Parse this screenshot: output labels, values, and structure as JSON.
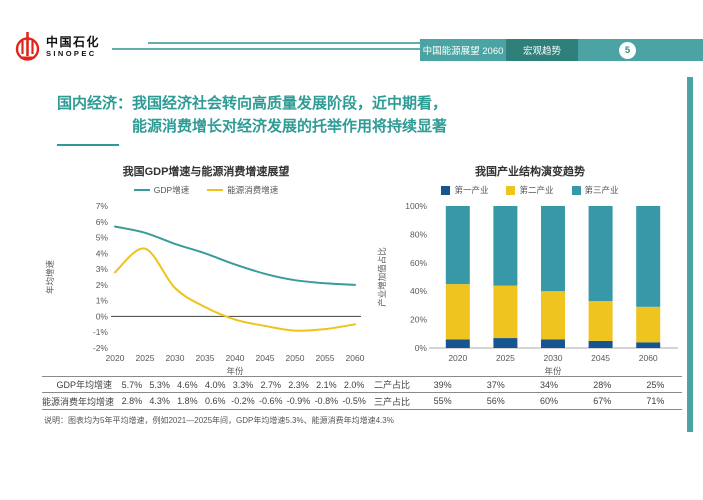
{
  "header": {
    "logo_cn": "中国石化",
    "logo_en": "SINOPEC",
    "banner_title": "中国能源展望 2060",
    "banner_section": "宏观趋势",
    "page_number": "5"
  },
  "title": {
    "prefix": "国内经济：",
    "line1": "我国经济社会转向高质量发展阶段，近中期看，",
    "line2": "能源消费增长对经济发展的托举作用将持续显著"
  },
  "chart_data": [
    {
      "type": "line",
      "title": "我国GDP增速与能源消费增速展望",
      "x": [
        2020,
        2025,
        2030,
        2035,
        2040,
        2045,
        2050,
        2055,
        2060
      ],
      "series": [
        {
          "name": "GDP增速",
          "color": "#3a9b9b",
          "values": [
            5.7,
            5.3,
            4.6,
            4.0,
            3.3,
            2.7,
            2.3,
            2.1,
            2.0
          ]
        },
        {
          "name": "能源消费增速",
          "color": "#efc31d",
          "values": [
            2.8,
            4.3,
            1.8,
            0.6,
            -0.2,
            -0.6,
            -0.9,
            -0.8,
            -0.5
          ]
        }
      ],
      "xlabel": "年份",
      "ylabel": "年均增速",
      "ylim": [
        -2,
        7
      ],
      "ytick_step": 1,
      "ytick_suffix": "%",
      "grid": false,
      "legend_position": "top"
    },
    {
      "type": "bar",
      "title": "我国产业结构演变趋势",
      "categories": [
        2020,
        2025,
        2030,
        2045,
        2060
      ],
      "series": [
        {
          "name": "第一产业",
          "color": "#16558f",
          "values": [
            6,
            7,
            6,
            5,
            4
          ]
        },
        {
          "name": "第二产业",
          "color": "#f0c41e",
          "values": [
            39,
            37,
            34,
            28,
            25
          ]
        },
        {
          "name": "第三产业",
          "color": "#3898a8",
          "values": [
            55,
            56,
            60,
            67,
            71
          ]
        }
      ],
      "stacked": true,
      "xlabel": "年份",
      "ylabel": "产业增加值占比",
      "ylim": [
        0,
        100
      ],
      "ytick_step": 20,
      "ytick_suffix": "%",
      "grid": false,
      "legend_position": "top"
    }
  ],
  "left_table": {
    "rows": [
      {
        "label": "GDP年均增速",
        "values": [
          "5.7%",
          "5.3%",
          "4.6%",
          "4.0%",
          "3.3%",
          "2.7%",
          "2.3%",
          "2.1%",
          "2.0%"
        ]
      },
      {
        "label": "能源消费年均增速",
        "values": [
          "2.8%",
          "4.3%",
          "1.8%",
          "0.6%",
          "-0.2%",
          "-0.6%",
          "-0.9%",
          "-0.8%",
          "-0.5%"
        ]
      }
    ]
  },
  "right_table": {
    "rows": [
      {
        "label": "二产占比",
        "values": [
          "39%",
          "37%",
          "34%",
          "28%",
          "25%"
        ]
      },
      {
        "label": "三产占比",
        "values": [
          "55%",
          "56%",
          "60%",
          "67%",
          "71%"
        ]
      }
    ]
  },
  "note": "说明：图表均为5年平均增速，例如2021—2025年间，GDP年均增速5.3%、能源消费年均增速4.3%",
  "colors": {
    "accent_teal": "#2e9b95",
    "banner_teal": "#4ca3a3",
    "banner_dark_teal": "#2f7f7b",
    "logo_red": "#e0261c",
    "axis_gray": "#595959"
  }
}
